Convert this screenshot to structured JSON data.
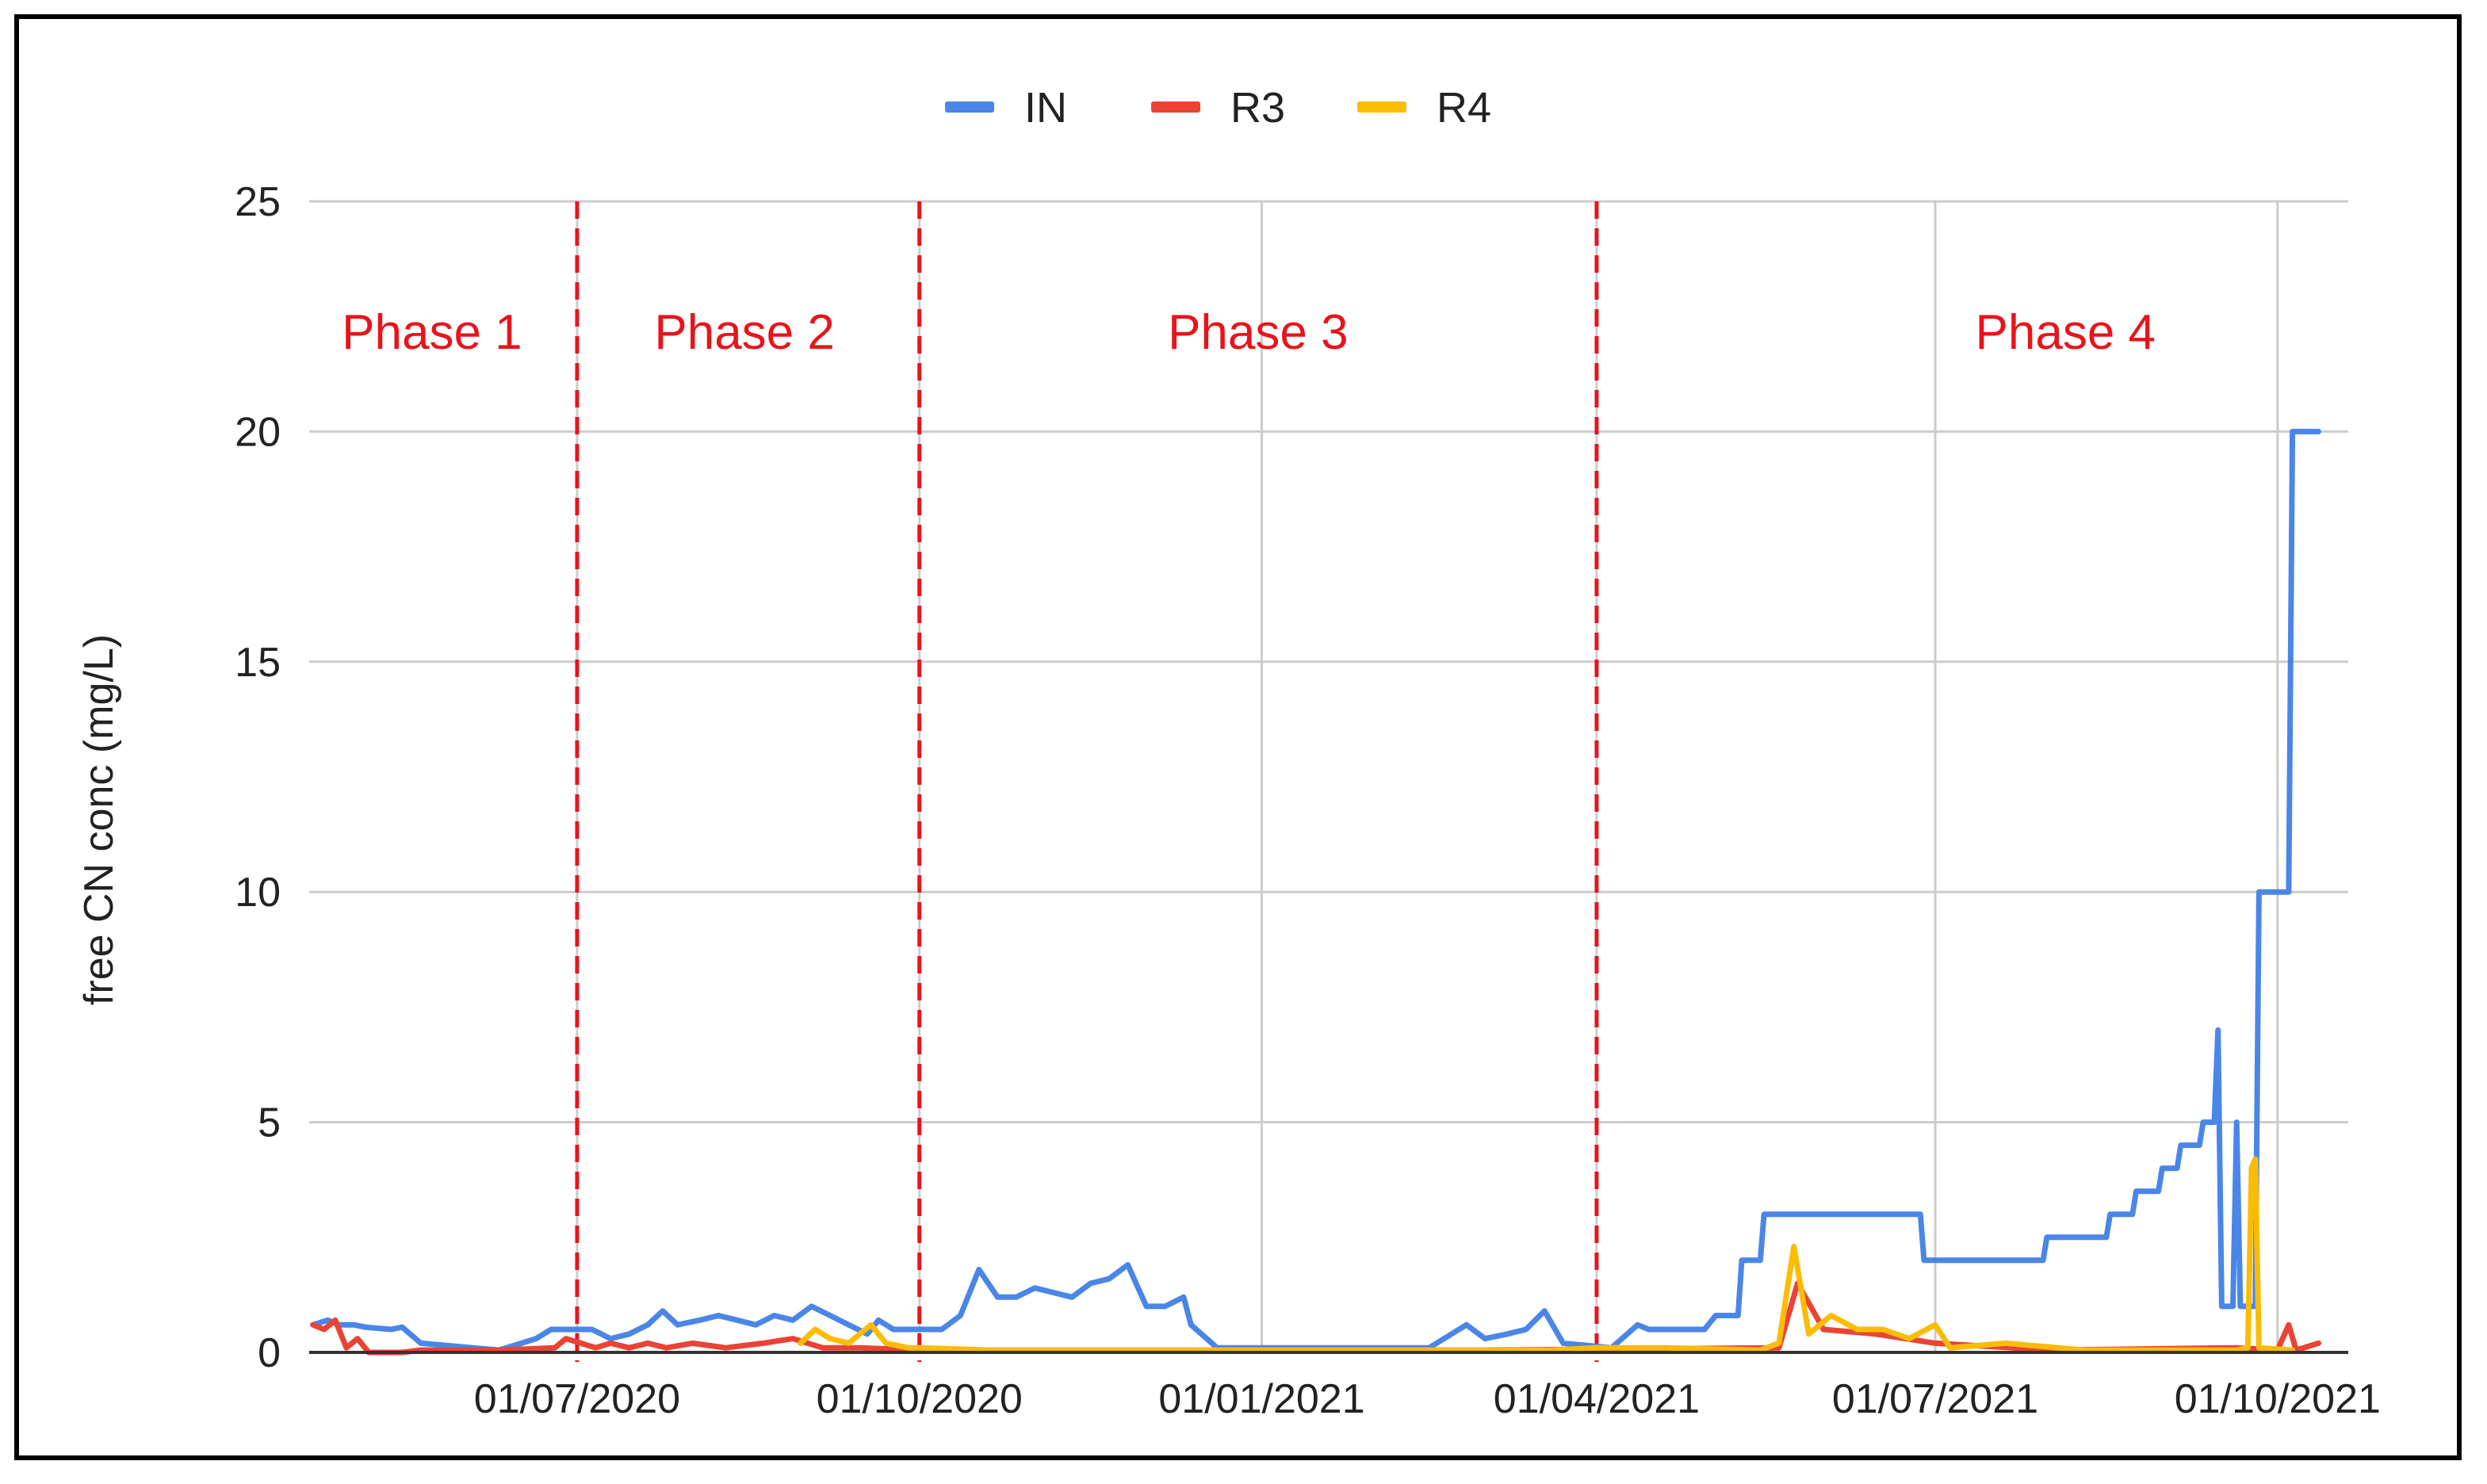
{
  "chart_data": {
    "type": "line",
    "title": "",
    "xlabel": "",
    "ylabel": "free CN conc (mg/L)",
    "ylim": [
      0,
      25
    ],
    "yticks": [
      0,
      5,
      10,
      15,
      20,
      25
    ],
    "xlim": [
      "2020-04-20",
      "2021-10-20"
    ],
    "xticks": [
      {
        "date": "2020-07-01",
        "label": "01/07/2020"
      },
      {
        "date": "2020-10-01",
        "label": "01/10/2020"
      },
      {
        "date": "2021-01-01",
        "label": "01/01/2021"
      },
      {
        "date": "2021-04-01",
        "label": "01/04/2021"
      },
      {
        "date": "2021-07-01",
        "label": "01/07/2021"
      },
      {
        "date": "2021-10-01",
        "label": "01/10/2021"
      }
    ],
    "grid": true,
    "legend_position": "top-center",
    "phase_lines": [
      "2020-07-01",
      "2020-10-01",
      "2021-04-01"
    ],
    "phase_line_color": "#e8141b",
    "phases": [
      {
        "label": "Phase 1",
        "date": "2020-05-23"
      },
      {
        "label": "Phase 2",
        "date": "2020-08-15"
      },
      {
        "label": "Phase 3",
        "date": "2020-12-31"
      },
      {
        "label": "Phase 4",
        "date": "2021-07-36"
      }
    ],
    "series": [
      {
        "name": "IN",
        "color": "#4a86e8",
        "points": [
          [
            "2020-04-21",
            0.6
          ],
          [
            "2020-04-25",
            0.7
          ],
          [
            "2020-04-28",
            0.6
          ],
          [
            "2020-05-02",
            0.6
          ],
          [
            "2020-05-05",
            0.55
          ],
          [
            "2020-05-12",
            0.5
          ],
          [
            "2020-05-15",
            0.55
          ],
          [
            "2020-05-20",
            0.2
          ],
          [
            "2020-06-10",
            0.05
          ],
          [
            "2020-06-20",
            0.3
          ],
          [
            "2020-06-24",
            0.5
          ],
          [
            "2020-06-28",
            0.5
          ],
          [
            "2020-07-05",
            0.5
          ],
          [
            "2020-07-10",
            0.3
          ],
          [
            "2020-07-15",
            0.4
          ],
          [
            "2020-07-20",
            0.6
          ],
          [
            "2020-07-24",
            0.9
          ],
          [
            "2020-07-28",
            0.6
          ],
          [
            "2020-08-03",
            0.7
          ],
          [
            "2020-08-08",
            0.8
          ],
          [
            "2020-08-13",
            0.7
          ],
          [
            "2020-08-18",
            0.6
          ],
          [
            "2020-08-23",
            0.8
          ],
          [
            "2020-08-28",
            0.7
          ],
          [
            "2020-09-02",
            1.0
          ],
          [
            "2020-09-07",
            0.8
          ],
          [
            "2020-09-12",
            0.6
          ],
          [
            "2020-09-17",
            0.4
          ],
          [
            "2020-09-20",
            0.7
          ],
          [
            "2020-09-24",
            0.5
          ],
          [
            "2020-09-29",
            0.5
          ],
          [
            "2020-10-03",
            0.5
          ],
          [
            "2020-10-07",
            0.5
          ],
          [
            "2020-10-12",
            0.8
          ],
          [
            "2020-10-17",
            1.8
          ],
          [
            "2020-10-22",
            1.2
          ],
          [
            "2020-10-27",
            1.2
          ],
          [
            "2020-11-01",
            1.4
          ],
          [
            "2020-11-06",
            1.3
          ],
          [
            "2020-11-11",
            1.2
          ],
          [
            "2020-11-16",
            1.5
          ],
          [
            "2020-11-21",
            1.6
          ],
          [
            "2020-11-26",
            1.9
          ],
          [
            "2020-12-01",
            1.0
          ],
          [
            "2020-12-06",
            1.0
          ],
          [
            "2020-12-11",
            1.2
          ],
          [
            "2020-12-13",
            0.6
          ],
          [
            "2020-12-20",
            0.1
          ],
          [
            "2021-01-05",
            0.1
          ],
          [
            "2021-01-25",
            0.1
          ],
          [
            "2021-02-15",
            0.1
          ],
          [
            "2021-02-25",
            0.6
          ],
          [
            "2021-03-02",
            0.3
          ],
          [
            "2021-03-08",
            0.4
          ],
          [
            "2021-03-13",
            0.5
          ],
          [
            "2021-03-18",
            0.9
          ],
          [
            "2021-03-23",
            0.2
          ],
          [
            "2021-04-05",
            0.1
          ],
          [
            "2021-04-12",
            0.6
          ],
          [
            "2021-04-15",
            0.5
          ],
          [
            "2021-04-30",
            0.5
          ],
          [
            "2021-05-03",
            0.8
          ],
          [
            "2021-05-09",
            0.8
          ],
          [
            "2021-05-10",
            2.0
          ],
          [
            "2021-05-15",
            2.0
          ],
          [
            "2021-05-16",
            3.0
          ],
          [
            "2021-05-23",
            3.0
          ],
          [
            "2021-06-27",
            3.0
          ],
          [
            "2021-06-28",
            2.0
          ],
          [
            "2021-07-30",
            2.0
          ],
          [
            "2021-07-31",
            2.5
          ],
          [
            "2021-08-16",
            2.5
          ],
          [
            "2021-08-17",
            3.0
          ],
          [
            "2021-08-23",
            3.0
          ],
          [
            "2021-08-24",
            3.5
          ],
          [
            "2021-08-30",
            3.5
          ],
          [
            "2021-08-31",
            4.0
          ],
          [
            "2021-09-04",
            4.0
          ],
          [
            "2021-09-05",
            4.5
          ],
          [
            "2021-09-10",
            4.5
          ],
          [
            "2021-09-11",
            5.0
          ],
          [
            "2021-09-14",
            5.0
          ],
          [
            "2021-09-15",
            7.0
          ],
          [
            "2021-09-16",
            1.0
          ],
          [
            "2021-09-19",
            1.0
          ],
          [
            "2021-09-20",
            5.0
          ],
          [
            "2021-09-21",
            1.0
          ],
          [
            "2021-09-25",
            1.0
          ],
          [
            "2021-09-26",
            10.0
          ],
          [
            "2021-10-04",
            10.0
          ],
          [
            "2021-10-05",
            20.0
          ],
          [
            "2021-10-12",
            20.0
          ]
        ]
      },
      {
        "name": "R3",
        "color": "#ea4335",
        "points": [
          [
            "2020-04-21",
            0.6
          ],
          [
            "2020-04-24",
            0.5
          ],
          [
            "2020-04-27",
            0.7
          ],
          [
            "2020-04-30",
            0.1
          ],
          [
            "2020-05-03",
            0.3
          ],
          [
            "2020-05-06",
            0.0
          ],
          [
            "2020-05-15",
            0.0
          ],
          [
            "2020-05-20",
            0.05
          ],
          [
            "2020-06-10",
            0.05
          ],
          [
            "2020-06-25",
            0.1
          ],
          [
            "2020-06-28",
            0.3
          ],
          [
            "2020-07-02",
            0.2
          ],
          [
            "2020-07-06",
            0.1
          ],
          [
            "2020-07-10",
            0.2
          ],
          [
            "2020-07-15",
            0.1
          ],
          [
            "2020-07-20",
            0.2
          ],
          [
            "2020-07-25",
            0.1
          ],
          [
            "2020-08-01",
            0.2
          ],
          [
            "2020-08-10",
            0.1
          ],
          [
            "2020-08-20",
            0.2
          ],
          [
            "2020-08-28",
            0.3
          ],
          [
            "2020-09-05",
            0.1
          ],
          [
            "2020-09-15",
            0.1
          ],
          [
            "2020-10-01",
            0.05
          ],
          [
            "2020-12-01",
            0.05
          ],
          [
            "2021-03-01",
            0.05
          ],
          [
            "2021-05-20",
            0.1
          ],
          [
            "2021-05-25",
            1.5
          ],
          [
            "2021-06-01",
            0.5
          ],
          [
            "2021-06-15",
            0.4
          ],
          [
            "2021-07-01",
            0.2
          ],
          [
            "2021-08-01",
            0.05
          ],
          [
            "2021-09-20",
            0.1
          ],
          [
            "2021-10-01",
            0.05
          ],
          [
            "2021-10-04",
            0.6
          ],
          [
            "2021-10-06",
            0.05
          ],
          [
            "2021-10-12",
            0.2
          ]
        ]
      },
      {
        "name": "R4",
        "color": "#fbbc04",
        "points": [
          [
            "2020-08-30",
            0.2
          ],
          [
            "2020-09-03",
            0.5
          ],
          [
            "2020-09-07",
            0.3
          ],
          [
            "2020-09-12",
            0.2
          ],
          [
            "2020-09-18",
            0.6
          ],
          [
            "2020-09-22",
            0.2
          ],
          [
            "2020-09-28",
            0.1
          ],
          [
            "2020-10-01",
            0.1
          ],
          [
            "2020-10-20",
            0.05
          ],
          [
            "2020-11-15",
            0.05
          ],
          [
            "2020-12-15",
            0.05
          ],
          [
            "2021-01-20",
            0.05
          ],
          [
            "2021-02-20",
            0.05
          ],
          [
            "2021-03-20",
            0.05
          ],
          [
            "2021-04-01",
            0.1
          ],
          [
            "2021-04-20",
            0.1
          ],
          [
            "2021-05-15",
            0.05
          ],
          [
            "2021-05-20",
            0.2
          ],
          [
            "2021-05-24",
            2.3
          ],
          [
            "2021-05-28",
            0.4
          ],
          [
            "2021-06-03",
            0.8
          ],
          [
            "2021-06-10",
            0.5
          ],
          [
            "2021-06-17",
            0.5
          ],
          [
            "2021-06-24",
            0.3
          ],
          [
            "2021-07-01",
            0.6
          ],
          [
            "2021-07-05",
            0.1
          ],
          [
            "2021-07-20",
            0.2
          ],
          [
            "2021-08-10",
            0.05
          ],
          [
            "2021-09-20",
            0.05
          ],
          [
            "2021-09-23",
            0.1
          ],
          [
            "2021-09-24",
            4.0
          ],
          [
            "2021-09-25",
            4.2
          ],
          [
            "2021-09-26",
            0.1
          ],
          [
            "2021-10-05",
            0.05
          ]
        ]
      }
    ]
  }
}
